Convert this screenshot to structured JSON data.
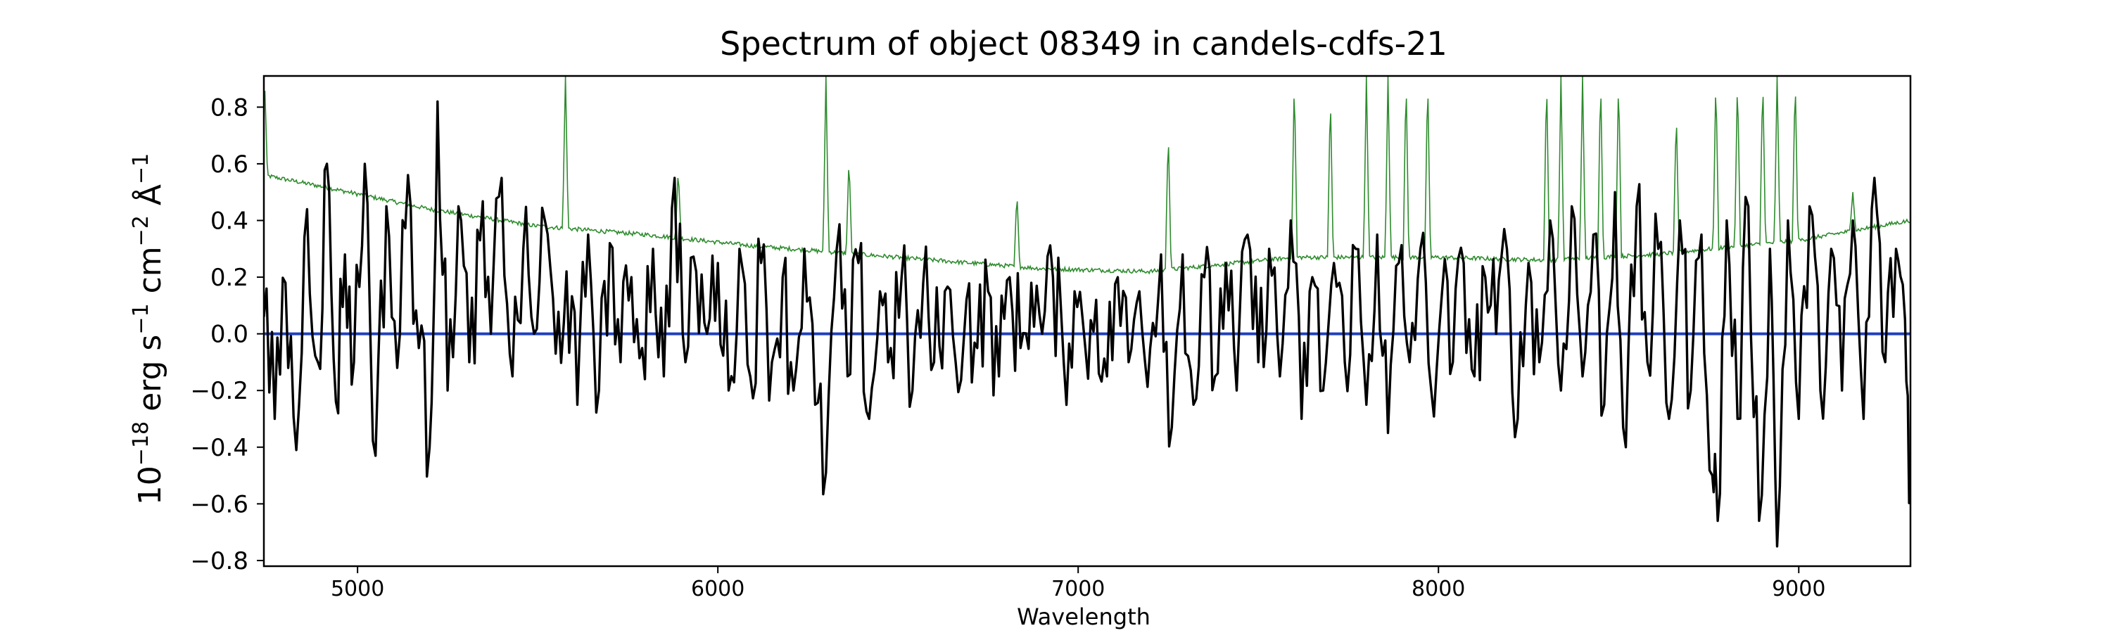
{
  "chart_data": {
    "type": "line",
    "title": "Spectrum of object 08349 in candels-cdfs-21",
    "xlabel": "Wavelength",
    "ylabel_parts": {
      "base": "10",
      "exp1": "−18",
      "mid1": " erg s",
      "exp2": "−1",
      "mid2": " cm",
      "exp3": "−2",
      "mid3": " Å",
      "exp4": "−1"
    },
    "xlim": [
      4740,
      9310
    ],
    "ylim": [
      -0.82,
      0.91
    ],
    "xticks": [
      5000,
      6000,
      7000,
      8000,
      9000
    ],
    "xtick_labels": [
      "5000",
      "6000",
      "7000",
      "8000",
      "9000"
    ],
    "yticks": [
      -0.8,
      -0.6,
      -0.4,
      -0.2,
      0.0,
      0.2,
      0.4,
      0.6,
      0.8
    ],
    "ytick_labels": [
      "−0.8",
      "−0.6",
      "−0.4",
      "−0.2",
      "0.0",
      "0.2",
      "0.4",
      "0.6",
      "0.8"
    ],
    "series": [
      {
        "role": "error",
        "color": "#2e8b2e",
        "baseline": [
          [
            4740,
            0.56
          ],
          [
            4900,
            0.52
          ],
          [
            5200,
            0.44
          ],
          [
            5500,
            0.38
          ],
          [
            5800,
            0.35
          ],
          [
            6100,
            0.31
          ],
          [
            6500,
            0.27
          ],
          [
            6900,
            0.23
          ],
          [
            7200,
            0.22
          ],
          [
            7600,
            0.27
          ],
          [
            8000,
            0.27
          ],
          [
            8300,
            0.26
          ],
          [
            8600,
            0.28
          ],
          [
            9000,
            0.33
          ],
          [
            9310,
            0.4
          ]
        ],
        "peaks": [
          [
            4742,
            0.9
          ],
          [
            5577,
            0.91
          ],
          [
            5890,
            0.58
          ],
          [
            6300,
            0.91
          ],
          [
            6364,
            0.62
          ],
          [
            6830,
            0.5
          ],
          [
            7250,
            0.72
          ],
          [
            7600,
            0.91
          ],
          [
            7700,
            0.85
          ],
          [
            7800,
            0.91
          ],
          [
            7860,
            0.91
          ],
          [
            7910,
            0.91
          ],
          [
            7970,
            0.91
          ],
          [
            8300,
            0.91
          ],
          [
            8340,
            0.91
          ],
          [
            8400,
            0.91
          ],
          [
            8450,
            0.91
          ],
          [
            8500,
            0.91
          ],
          [
            8660,
            0.79
          ],
          [
            8770,
            0.91
          ],
          [
            8830,
            0.91
          ],
          [
            8900,
            0.91
          ],
          [
            8940,
            0.91
          ],
          [
            8990,
            0.91
          ],
          [
            9150,
            0.5
          ]
        ]
      },
      {
        "role": "continuum",
        "color": "#1f3fbf",
        "points": [
          [
            4740,
            0.0
          ],
          [
            9310,
            0.0
          ]
        ]
      },
      {
        "role": "flux",
        "color": "#000000",
        "points": [
          [
            4740,
            0.06
          ],
          [
            4770,
            -0.3
          ],
          [
            4800,
            0.18
          ],
          [
            4830,
            -0.41
          ],
          [
            4860,
            0.44
          ],
          [
            4890,
            -0.1
          ],
          [
            4915,
            0.6
          ],
          [
            4940,
            -0.24
          ],
          [
            4965,
            0.28
          ],
          [
            4990,
            -0.1
          ],
          [
            5020,
            0.6
          ],
          [
            5050,
            -0.43
          ],
          [
            5080,
            0.45
          ],
          [
            5110,
            -0.12
          ],
          [
            5140,
            0.56
          ],
          [
            5170,
            -0.05
          ],
          [
            5200,
            -0.4
          ],
          [
            5222,
            0.82
          ],
          [
            5250,
            -0.2
          ],
          [
            5280,
            0.45
          ],
          [
            5310,
            -0.1
          ],
          [
            5340,
            0.33
          ],
          [
            5370,
            0.0
          ],
          [
            5400,
            0.55
          ],
          [
            5430,
            -0.15
          ],
          [
            5460,
            0.3
          ],
          [
            5490,
            0.0
          ],
          [
            5520,
            0.4
          ],
          [
            5550,
            -0.07
          ],
          [
            5580,
            0.22
          ],
          [
            5610,
            -0.25
          ],
          [
            5640,
            0.35
          ],
          [
            5670,
            -0.2
          ],
          [
            5700,
            0.32
          ],
          [
            5730,
            -0.1
          ],
          [
            5760,
            0.2
          ],
          [
            5790,
            -0.05
          ],
          [
            5820,
            0.3
          ],
          [
            5850,
            -0.15
          ],
          [
            5880,
            0.55
          ],
          [
            5910,
            -0.1
          ],
          [
            5940,
            0.22
          ],
          [
            5970,
            0.0
          ],
          [
            6000,
            0.25
          ],
          [
            6030,
            -0.2
          ],
          [
            6060,
            0.3
          ],
          [
            6090,
            -0.15
          ],
          [
            6120,
            0.25
          ],
          [
            6150,
            -0.1
          ],
          [
            6180,
            0.2
          ],
          [
            6210,
            -0.2
          ],
          [
            6240,
            0.3
          ],
          [
            6270,
            -0.25
          ],
          [
            6300,
            -0.49
          ],
          [
            6330,
            0.3
          ],
          [
            6360,
            -0.15
          ],
          [
            6390,
            0.25
          ],
          [
            6420,
            -0.3
          ],
          [
            6450,
            0.15
          ],
          [
            6480,
            -0.05
          ],
          [
            6510,
            0.2
          ],
          [
            6540,
            -0.2
          ],
          [
            6570,
            0.18
          ],
          [
            6600,
            -0.1
          ],
          [
            6630,
            0.15
          ],
          [
            6660,
            -0.1
          ],
          [
            6690,
            0.12
          ],
          [
            6720,
            -0.05
          ],
          [
            6750,
            0.15
          ],
          [
            6780,
            -0.15
          ],
          [
            6810,
            0.2
          ],
          [
            6840,
            -0.05
          ],
          [
            6870,
            0.18
          ],
          [
            6900,
            0.0
          ],
          [
            6930,
            0.2
          ],
          [
            6960,
            -0.1
          ],
          [
            6990,
            0.15
          ],
          [
            7020,
            -0.05
          ],
          [
            7050,
            0.12
          ],
          [
            7080,
            -0.15
          ],
          [
            7110,
            0.2
          ],
          [
            7140,
            -0.1
          ],
          [
            7170,
            0.15
          ],
          [
            7200,
            -0.05
          ],
          [
            7230,
            0.28
          ],
          [
            7260,
            -0.33
          ],
          [
            7290,
            0.28
          ],
          [
            7320,
            -0.25
          ],
          [
            7350,
            0.2
          ],
          [
            7380,
            -0.15
          ],
          [
            7410,
            0.25
          ],
          [
            7440,
            -0.2
          ],
          [
            7470,
            0.35
          ],
          [
            7500,
            -0.1
          ],
          [
            7530,
            0.3
          ],
          [
            7560,
            -0.15
          ],
          [
            7590,
            0.4
          ],
          [
            7620,
            -0.3
          ],
          [
            7650,
            0.2
          ],
          [
            7680,
            -0.2
          ],
          [
            7710,
            0.25
          ],
          [
            7740,
            -0.1
          ],
          [
            7770,
            0.3
          ],
          [
            7800,
            -0.25
          ],
          [
            7830,
            0.35
          ],
          [
            7860,
            -0.35
          ],
          [
            7890,
            0.25
          ],
          [
            7920,
            -0.1
          ],
          [
            7950,
            0.3
          ],
          [
            7980,
            -0.2
          ],
          [
            8010,
            0.15
          ],
          [
            8040,
            -0.1
          ],
          [
            8070,
            0.25
          ],
          [
            8100,
            -0.15
          ],
          [
            8130,
            0.2
          ],
          [
            8160,
            0.0
          ],
          [
            8190,
            0.3
          ],
          [
            8220,
            -0.3
          ],
          [
            8250,
            0.25
          ],
          [
            8280,
            -0.1
          ],
          [
            8310,
            0.4
          ],
          [
            8340,
            -0.2
          ],
          [
            8370,
            0.45
          ],
          [
            8400,
            -0.15
          ],
          [
            8430,
            0.35
          ],
          [
            8460,
            -0.25
          ],
          [
            8490,
            0.5
          ],
          [
            8520,
            -0.4
          ],
          [
            8550,
            0.45
          ],
          [
            8580,
            -0.1
          ],
          [
            8610,
            0.3
          ],
          [
            8640,
            -0.3
          ],
          [
            8670,
            0.4
          ],
          [
            8700,
            -0.2
          ],
          [
            8730,
            0.35
          ],
          [
            8760,
            -0.5
          ],
          [
            8775,
            -0.66
          ],
          [
            8800,
            0.4
          ],
          [
            8830,
            -0.3
          ],
          [
            8860,
            0.45
          ],
          [
            8890,
            -0.66
          ],
          [
            8920,
            0.3
          ],
          [
            8940,
            -0.75
          ],
          [
            8970,
            0.4
          ],
          [
            9000,
            -0.3
          ],
          [
            9030,
            0.45
          ],
          [
            9060,
            -0.2
          ],
          [
            9090,
            0.3
          ],
          [
            9120,
            -0.2
          ],
          [
            9150,
            0.4
          ],
          [
            9180,
            -0.3
          ],
          [
            9210,
            0.55
          ],
          [
            9240,
            -0.1
          ],
          [
            9270,
            0.3
          ],
          [
            9295,
            0.05
          ],
          [
            9310,
            -0.59
          ]
        ]
      }
    ],
    "grid": false,
    "legend": "none"
  }
}
